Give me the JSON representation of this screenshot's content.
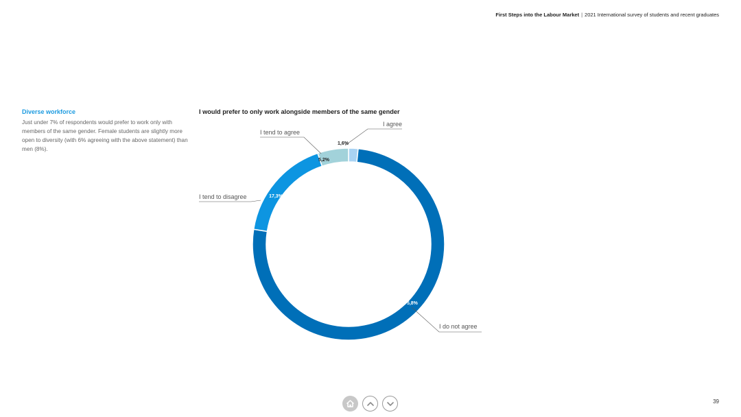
{
  "header": {
    "report_title": "First Steps into the Labour Market",
    "separator": "|",
    "subtitle": "2021 International survey of students and recent graduates"
  },
  "sidebar": {
    "heading": "Diverse workforce",
    "body": "Just under 7% of respondents would prefer to work only with members of the same gender. Female students are slightly more open to diversity (with 6% agreeing with the above statement) than men (8%)."
  },
  "chart_data": {
    "type": "pie",
    "donut": true,
    "title": "I would prefer to only work alongside members of the same gender",
    "slices": [
      {
        "label": "I agree",
        "value": 1.6,
        "value_label": "1,6%",
        "color": "#a9d3f3"
      },
      {
        "label": "I do not agree",
        "value": 75.8,
        "value_label": "75,8%",
        "color": "#006fb8"
      },
      {
        "label": "I tend to disagree",
        "value": 17.3,
        "value_label": "17,3%",
        "color": "#0d95e1"
      },
      {
        "label": "I tend to agree",
        "value": 5.2,
        "value_label": "5,2%",
        "color": "#a2d2da"
      }
    ],
    "start_angle_deg": 0,
    "direction": "clockwise"
  },
  "navigation": {
    "home_icon": "home-icon",
    "prev_icon": "chevron-up-icon",
    "next_icon": "chevron-down-icon"
  },
  "page_number": "39"
}
